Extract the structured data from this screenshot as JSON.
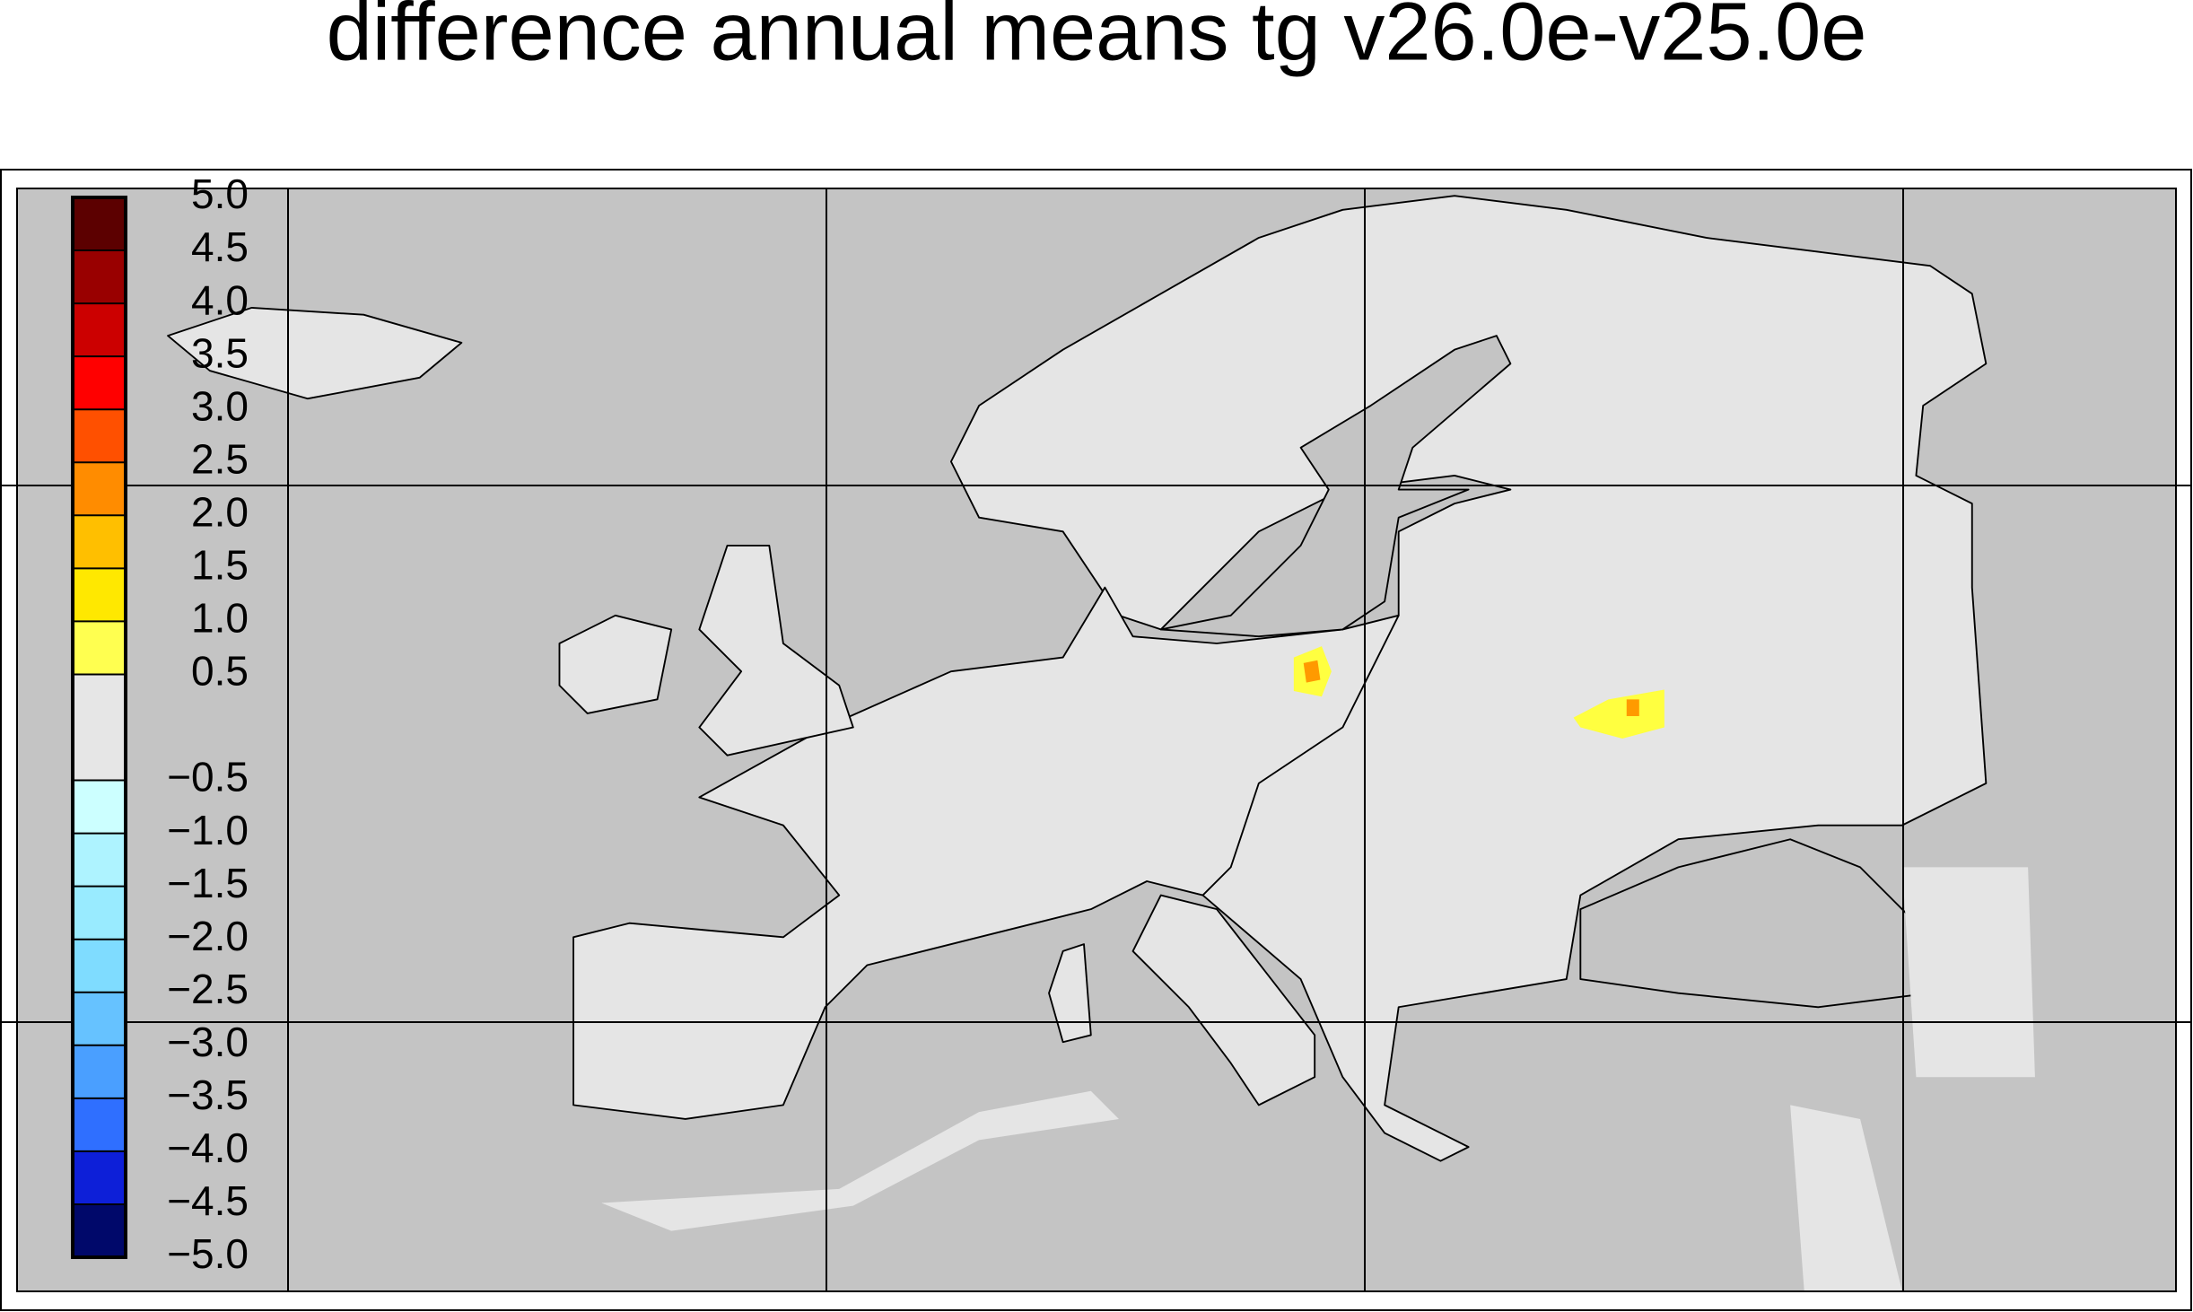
{
  "title": "difference annual means tg v26.0e-v25.0e",
  "colorbar": {
    "levels": [
      {
        "value": 5.0,
        "label": "5.0"
      },
      {
        "value": 4.5,
        "label": "4.5"
      },
      {
        "value": 4.0,
        "label": "4.0"
      },
      {
        "value": 3.5,
        "label": "3.5"
      },
      {
        "value": 3.0,
        "label": "3.0"
      },
      {
        "value": 2.5,
        "label": "2.5"
      },
      {
        "value": 2.0,
        "label": "2.0"
      },
      {
        "value": 1.5,
        "label": "1.5"
      },
      {
        "value": 1.0,
        "label": "1.0"
      },
      {
        "value": 0.5,
        "label": "0.5"
      },
      {
        "value": -0.5,
        "label": "−0.5"
      },
      {
        "value": -1.0,
        "label": "−1.0"
      },
      {
        "value": -1.5,
        "label": "−1.5"
      },
      {
        "value": -2.0,
        "label": "−2.0"
      },
      {
        "value": -2.5,
        "label": "−2.5"
      },
      {
        "value": -3.0,
        "label": "−3.0"
      },
      {
        "value": -3.5,
        "label": "−3.5"
      },
      {
        "value": -4.0,
        "label": "−4.0"
      },
      {
        "value": -4.5,
        "label": "−4.5"
      },
      {
        "value": -5.0,
        "label": "−5.0"
      }
    ],
    "colors": [
      "#5c0000",
      "#990000",
      "#cc0000",
      "#ff0000",
      "#ff5000",
      "#ff8c00",
      "#ffbf00",
      "#ffe800",
      "#ffff50",
      "#e6e6e6",
      "#ccffff",
      "#aef3ff",
      "#99ebff",
      "#7fdcff",
      "#66c2ff",
      "#4a9fff",
      "#2f6fff",
      "#0d1fd8",
      "#00086a"
    ]
  }
}
